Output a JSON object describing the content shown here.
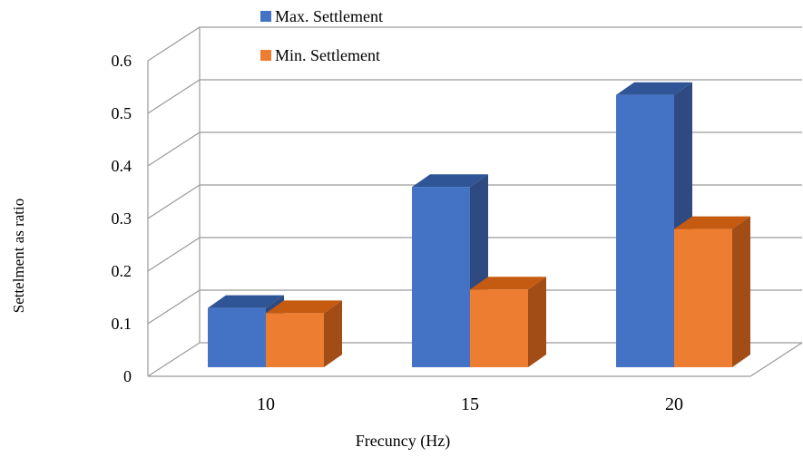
{
  "chart_data": {
    "type": "bar",
    "style": "3d-clustered-column",
    "title": "",
    "xlabel": "Frecuncy (Hz)",
    "ylabel": "Settelment as ratio",
    "categories": [
      "10",
      "15",
      "20"
    ],
    "series": [
      {
        "name": "Max. Settlement",
        "values": [
          0.13,
          0.36,
          0.535
        ],
        "color": "#4472C4",
        "top_color": "#2F5597",
        "side_color": "#2E4A80"
      },
      {
        "name": "Min. Settlement",
        "values": [
          0.12,
          0.165,
          0.28
        ],
        "color": "#ED7D31",
        "top_color": "#C55A11",
        "side_color": "#A24D16"
      }
    ],
    "ylim": [
      0,
      0.6
    ],
    "yticks": [
      "0",
      "0.1",
      "0.2",
      "0.3",
      "0.4",
      "0.5",
      "0.6"
    ],
    "grid": true,
    "legend_position": "top"
  }
}
